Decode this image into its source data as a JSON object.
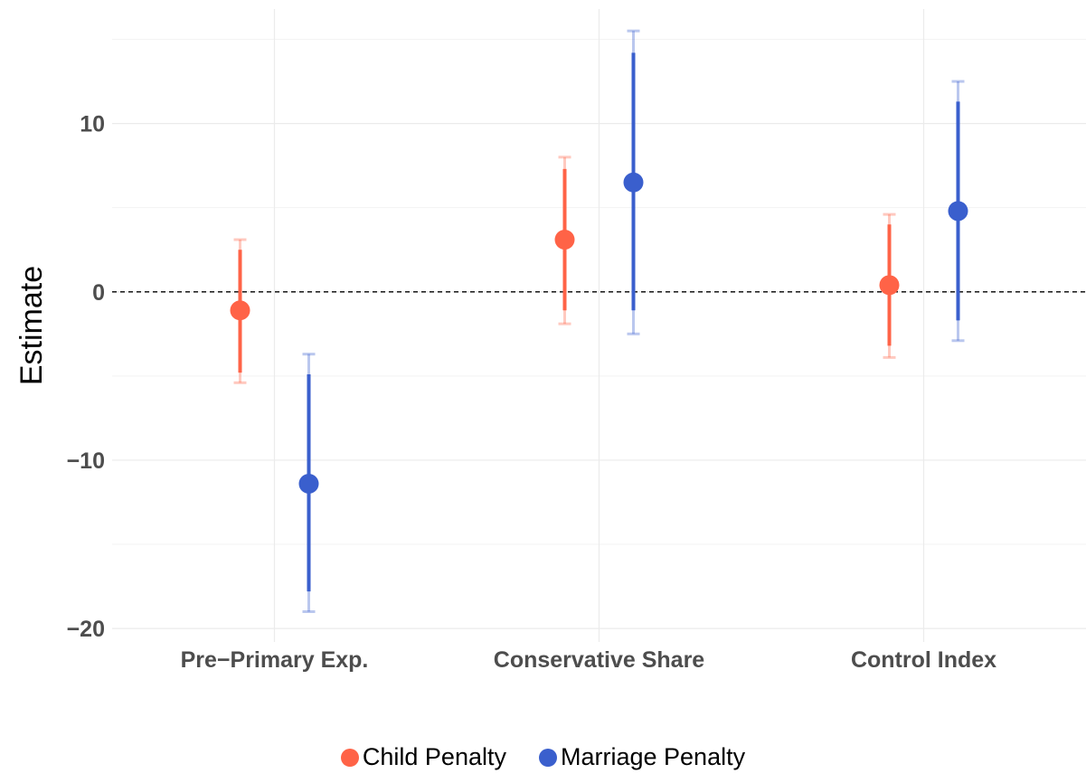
{
  "chart_data": {
    "type": "scatter",
    "subtype": "point-range with error bars",
    "ylabel": "Estimate",
    "xlabel": "",
    "ylim": [
      -20.8,
      16.8
    ],
    "yticks": [
      -20,
      -10,
      0,
      10
    ],
    "ytick_labels": [
      "−20",
      "−10",
      "0",
      "10"
    ],
    "categories": [
      "Pre−Primary Exp.",
      "Conservative Share",
      "Control Index"
    ],
    "reference_line": 0,
    "grid": true,
    "legend_position": "bottom",
    "series": [
      {
        "name": "Child Penalty",
        "color": "#FF6347",
        "estimates": [
          -1.1,
          3.1,
          0.4
        ],
        "inner_lower": [
          -4.8,
          -1.1,
          -3.2
        ],
        "inner_upper": [
          2.5,
          7.3,
          4.0
        ],
        "outer_lower": [
          -5.4,
          -1.9,
          -3.9
        ],
        "outer_upper": [
          3.1,
          8.0,
          4.6
        ]
      },
      {
        "name": "Marriage Penalty",
        "color": "#3A5FCD",
        "estimates": [
          -11.4,
          6.5,
          4.8
        ],
        "inner_lower": [
          -17.8,
          -1.1,
          -1.7
        ],
        "inner_upper": [
          -4.9,
          14.2,
          11.3
        ],
        "outer_lower": [
          -19.0,
          -2.5,
          -2.9
        ],
        "outer_upper": [
          -3.7,
          15.5,
          12.5
        ]
      }
    ]
  }
}
